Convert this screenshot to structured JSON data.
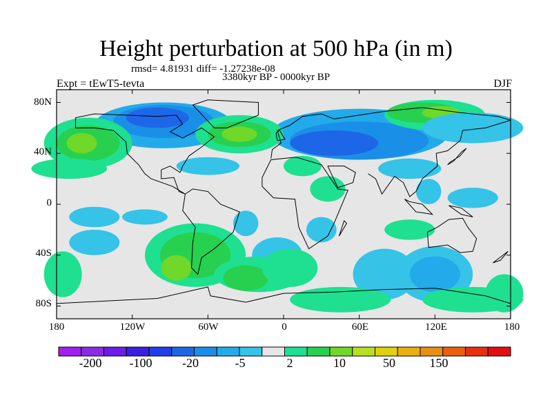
{
  "title": "Height perturbation at 500 hPa (in m)",
  "stats": "rmsd= 4.81931 diff= -1.27238e-08",
  "period": "3380kyr BP - 0000kyr BP",
  "experiment": "Expt = tEwT5-tevta",
  "season": "DJF",
  "lat_labels": [
    "80N",
    "40N",
    "0",
    "40S",
    "80S"
  ],
  "lat_values": [
    80,
    40,
    0,
    -40,
    -80
  ],
  "lon_labels": [
    "180",
    "120W",
    "60W",
    "0",
    "60E",
    "120E",
    "180"
  ],
  "lon_values": [
    -180,
    -120,
    -60,
    0,
    60,
    120,
    180
  ],
  "colorbar": {
    "colors": [
      "#a020f0",
      "#8a2be2",
      "#6a1ee8",
      "#3b1fe0",
      "#1f3fe6",
      "#1e66e8",
      "#1a8fe8",
      "#22aaea",
      "#35c3e8",
      "#e6e6e6",
      "#1ee090",
      "#28d050",
      "#70d828",
      "#b8e020",
      "#e0d010",
      "#e8b010",
      "#e89010",
      "#e86010",
      "#e83010",
      "#e01010"
    ],
    "labels": [
      "-200",
      "-100",
      "-20",
      "-5",
      "2",
      "10",
      "50",
      "150"
    ]
  }
}
